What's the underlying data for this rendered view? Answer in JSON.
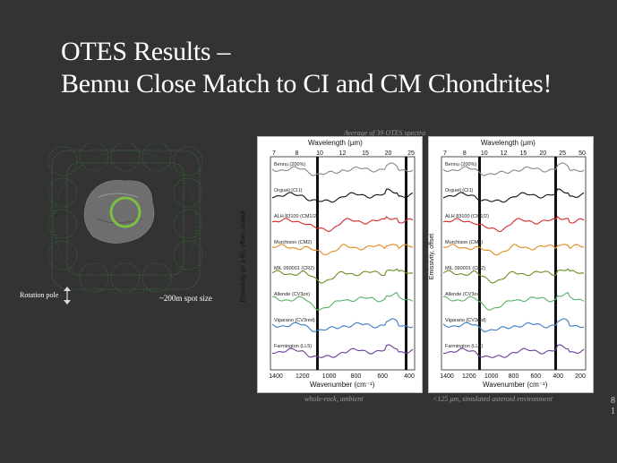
{
  "slide": {
    "title_line1": "OTES Results –",
    "title_line2": "Bennu Close Match to CI and CM Chondrites!",
    "avg_caption": "Average of 39 OTES spectra",
    "rotation_pole": "Rotation pole",
    "spot_size": "~200m spot size",
    "page_num_line1": "8",
    "page_num_line2": "1"
  },
  "left_panel": {
    "wavelength_label": "Wavelength (μm)",
    "wl_ticks": [
      "7",
      "8",
      "10",
      "12",
      "15",
      "20",
      "25"
    ],
    "wavenumber_label": "Wavenumber (cm⁻¹)",
    "wn_ticks": [
      "1400",
      "1200",
      "1000",
      "800",
      "600",
      "400"
    ],
    "y_label": "Emissivity (or 1-R), offset, scaled",
    "caption": "whole-rock, ambient",
    "samples": [
      "Bennu (200%)",
      "Orgueil (CI1)",
      "ALH 83100 (CM1/2)",
      "Murchison (CM2)",
      "MIL 090001 (CR2)",
      "Allende (CV3ox)",
      "Vigarano (CV3red)",
      "Farmington (LL5)"
    ]
  },
  "right_panel": {
    "wavelength_label": "Wavelength (μm)",
    "wl_ticks": [
      "7",
      "8",
      "10",
      "12",
      "15",
      "20",
      "25",
      "50"
    ],
    "wavenumber_label": "Wavenumber (cm⁻¹)",
    "wn_ticks": [
      "1400",
      "1200",
      "1000",
      "800",
      "600",
      "400",
      "200"
    ],
    "y_label": "Emissivity, offset",
    "caption": "<125 μm, simulated asteroid environment",
    "samples": [
      "Bennu (200%)",
      "Orgueil (CI1)",
      "ALH 83100 (CM1/2)",
      "Murchison (CM2)",
      "MIL 090001 (CR2)",
      "Allende (CV3ox)",
      "Vigarano (CV3red)",
      "Farmington (LL5)"
    ]
  },
  "colors": [
    "#888888",
    "#111111",
    "#d62728",
    "#e08a1e",
    "#6b8e23",
    "#58b368",
    "#3a7cc2",
    "#6a3d9a"
  ]
}
